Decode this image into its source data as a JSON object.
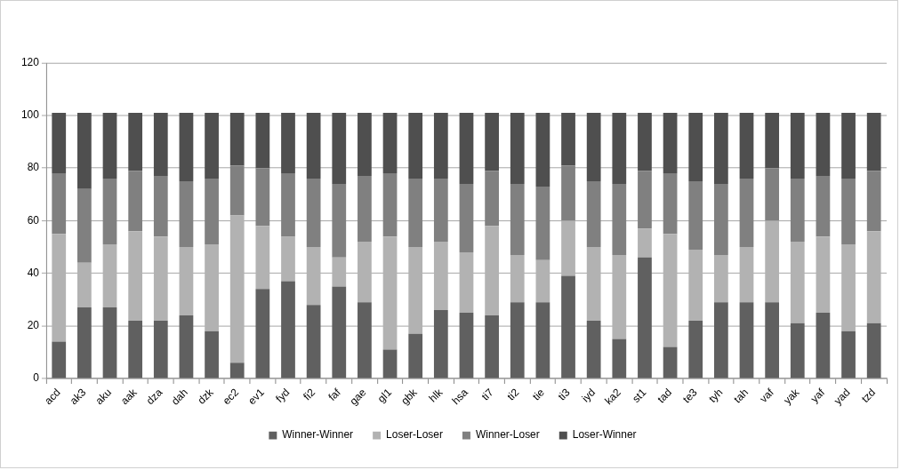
{
  "chart_data": {
    "type": "bar",
    "stacked": true,
    "categories": [
      "acd",
      "ak3",
      "aku",
      "aak",
      "dza",
      "dah",
      "dzk",
      "ec2",
      "ev1",
      "fyd",
      "fi2",
      "faf",
      "gae",
      "gl1",
      "gbk",
      "hlk",
      "hsa",
      "ti7",
      "ti2",
      "tie",
      "ti3",
      "iyd",
      "ka2",
      "st1",
      "tad",
      "te3",
      "tyh",
      "tah",
      "vaf",
      "yak",
      "yaf",
      "yad",
      "tzd"
    ],
    "series": [
      {
        "name": "Winner-Winner",
        "color": "#606060",
        "values": [
          14,
          27,
          27,
          22,
          22,
          24,
          18,
          6,
          34,
          37,
          28,
          35,
          29,
          11,
          17,
          26,
          25,
          24,
          29,
          29,
          39,
          22,
          15,
          46,
          12,
          22,
          29,
          29,
          29,
          21,
          25,
          18,
          21
        ]
      },
      {
        "name": "Loser-Loser",
        "color": "#b2b2b2",
        "values": [
          41,
          17,
          24,
          34,
          32,
          26,
          33,
          56,
          24,
          17,
          22,
          11,
          23,
          43,
          33,
          26,
          23,
          34,
          18,
          16,
          21,
          28,
          32,
          11,
          43,
          27,
          18,
          21,
          31,
          31,
          29,
          33,
          35
        ]
      },
      {
        "name": "Winner-Loser",
        "color": "#808080",
        "values": [
          23,
          28,
          25,
          23,
          23,
          25,
          25,
          19,
          22,
          24,
          26,
          28,
          25,
          24,
          26,
          24,
          26,
          21,
          27,
          28,
          21,
          25,
          27,
          22,
          23,
          26,
          27,
          26,
          20,
          24,
          23,
          25,
          23
        ]
      },
      {
        "name": "Loser-Winner",
        "color": "#4f4f4f",
        "values": [
          23,
          29,
          25,
          22,
          24,
          26,
          25,
          20,
          21,
          23,
          25,
          27,
          24,
          23,
          25,
          25,
          27,
          22,
          27,
          28,
          20,
          26,
          27,
          22,
          23,
          26,
          27,
          25,
          21,
          25,
          24,
          25,
          22
        ]
      }
    ],
    "ylim": [
      0,
      120
    ],
    "yticks": [
      0,
      20,
      40,
      60,
      80,
      100,
      120
    ],
    "grid": "y",
    "legend": "bottom"
  }
}
